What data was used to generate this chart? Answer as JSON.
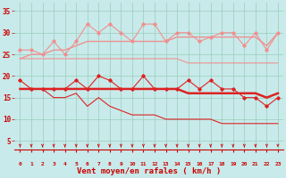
{
  "x": [
    0,
    1,
    2,
    3,
    4,
    5,
    6,
    7,
    8,
    9,
    10,
    11,
    12,
    13,
    14,
    15,
    16,
    17,
    18,
    19,
    20,
    21,
    22,
    23
  ],
  "series": [
    {
      "name": "rafales_max",
      "color": "#f09090",
      "linewidth": 0.8,
      "marker": "D",
      "markersize": 1.8,
      "values": [
        26,
        26,
        25,
        28,
        25,
        28,
        32,
        30,
        32,
        30,
        28,
        32,
        32,
        28,
        30,
        30,
        28,
        29,
        30,
        30,
        27,
        30,
        26,
        30
      ]
    },
    {
      "name": "rafales_moy_high",
      "color": "#f09090",
      "linewidth": 1.0,
      "marker": null,
      "markersize": 0,
      "values": [
        24,
        25,
        25,
        26,
        26,
        27,
        28,
        28,
        28,
        28,
        28,
        28,
        28,
        28,
        29,
        29,
        29,
        29,
        29,
        29,
        29,
        29,
        27,
        30
      ]
    },
    {
      "name": "rafales_moy_low",
      "color": "#f09090",
      "linewidth": 0.8,
      "marker": null,
      "markersize": 0,
      "values": [
        24,
        24,
        24,
        24,
        24,
        24,
        24,
        24,
        24,
        24,
        24,
        24,
        24,
        24,
        24,
        23,
        23,
        23,
        23,
        23,
        23,
        23,
        23,
        23
      ]
    },
    {
      "name": "vent_max",
      "color": "#dd2222",
      "linewidth": 0.8,
      "marker": "D",
      "markersize": 1.8,
      "values": [
        19,
        17,
        17,
        17,
        17,
        19,
        17,
        20,
        19,
        17,
        17,
        20,
        17,
        17,
        17,
        19,
        17,
        19,
        17,
        17,
        15,
        15,
        13,
        15
      ]
    },
    {
      "name": "vent_moy",
      "color": "#dd2222",
      "linewidth": 1.8,
      "marker": null,
      "markersize": 0,
      "values": [
        17,
        17,
        17,
        17,
        17,
        17,
        17,
        17,
        17,
        17,
        17,
        17,
        17,
        17,
        17,
        16,
        16,
        16,
        16,
        16,
        16,
        16,
        15,
        16
      ]
    },
    {
      "name": "vent_min",
      "color": "#dd2222",
      "linewidth": 0.8,
      "marker": null,
      "markersize": 0,
      "values": [
        17,
        17,
        17,
        15,
        15,
        16,
        13,
        15,
        13,
        12,
        11,
        11,
        11,
        10,
        10,
        10,
        10,
        10,
        9,
        9,
        9,
        9,
        9,
        9
      ]
    }
  ],
  "xlabel": "Vent moyen/en rafales ( km/h )",
  "xlabel_color": "#cc0000",
  "ylabel_ticks": [
    5,
    10,
    15,
    20,
    25,
    30,
    35
  ],
  "xticks": [
    0,
    1,
    2,
    3,
    4,
    5,
    6,
    7,
    8,
    9,
    10,
    11,
    12,
    13,
    14,
    15,
    16,
    17,
    18,
    19,
    20,
    21,
    22,
    23
  ],
  "ylim": [
    3,
    37
  ],
  "xlim": [
    -0.5,
    23.5
  ],
  "bg_color": "#c8eaea",
  "grid_color": "#99ccbb",
  "tick_color": "#cc0000",
  "figsize": [
    3.2,
    2.0
  ],
  "dpi": 100
}
